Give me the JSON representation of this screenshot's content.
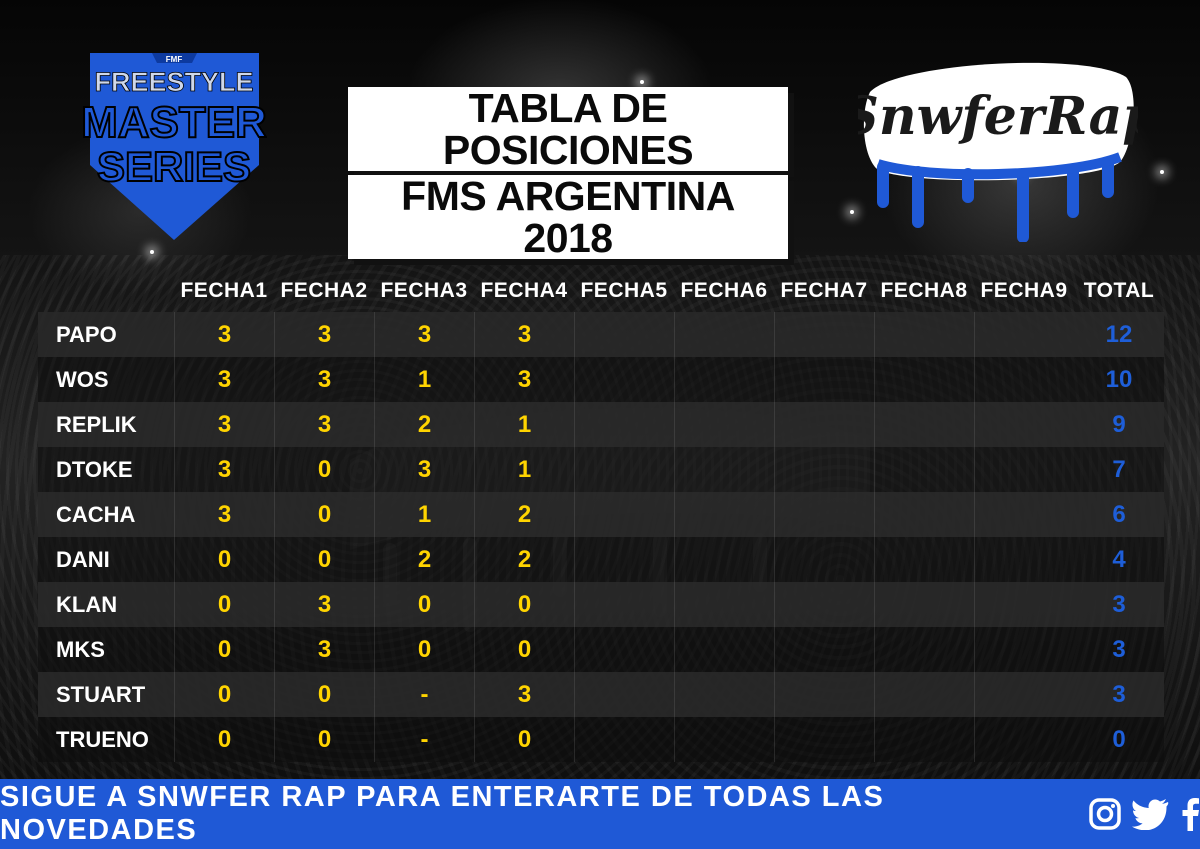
{
  "title": {
    "line1": "TABLA DE POSICIONES",
    "line2": "FMS ARGENTINA 2018"
  },
  "logos": {
    "left": {
      "small": "FMF",
      "line1": "FREESTYLE",
      "line2": "MASTER",
      "line3": "SERIES"
    },
    "right": {
      "text": "SnwferRap"
    }
  },
  "table": {
    "columns": [
      "FECHA1",
      "FECHA2",
      "FECHA3",
      "FECHA4",
      "FECHA5",
      "FECHA6",
      "FECHA7",
      "FECHA8",
      "FECHA9",
      "TOTAL"
    ],
    "rows": [
      {
        "name": "PAPO",
        "scores": [
          "3",
          "3",
          "3",
          "3",
          "",
          "",
          "",
          "",
          ""
        ],
        "total": "12"
      },
      {
        "name": "WOS",
        "scores": [
          "3",
          "3",
          "1",
          "3",
          "",
          "",
          "",
          "",
          ""
        ],
        "total": "10"
      },
      {
        "name": "REPLIK",
        "scores": [
          "3",
          "3",
          "2",
          "1",
          "",
          "",
          "",
          "",
          ""
        ],
        "total": "9"
      },
      {
        "name": "DTOKE",
        "scores": [
          "3",
          "0",
          "3",
          "1",
          "",
          "",
          "",
          "",
          ""
        ],
        "total": "7"
      },
      {
        "name": "CACHA",
        "scores": [
          "3",
          "0",
          "1",
          "2",
          "",
          "",
          "",
          "",
          ""
        ],
        "total": "6"
      },
      {
        "name": "DANI",
        "scores": [
          "0",
          "0",
          "2",
          "2",
          "",
          "",
          "",
          "",
          ""
        ],
        "total": "4"
      },
      {
        "name": "KLAN",
        "scores": [
          "0",
          "3",
          "0",
          "0",
          "",
          "",
          "",
          "",
          ""
        ],
        "total": "3"
      },
      {
        "name": "MKS",
        "scores": [
          "0",
          "3",
          "0",
          "0",
          "",
          "",
          "",
          "",
          ""
        ],
        "total": "3"
      },
      {
        "name": "STUART",
        "scores": [
          "0",
          "0",
          "-",
          "3",
          "",
          "",
          "",
          "",
          ""
        ],
        "total": "3"
      },
      {
        "name": "TRUENO",
        "scores": [
          "0",
          "0",
          "-",
          "0",
          "",
          "",
          "",
          "",
          ""
        ],
        "total": "0"
      }
    ]
  },
  "footer": {
    "text": "SIGUE A SNWFER RAP PARA ENTERARTE DE TODAS LAS NOVEDADES",
    "icons": [
      "instagram-icon",
      "twitter-icon",
      "facebook-icon"
    ]
  },
  "colors": {
    "score": "#ffd400",
    "total": "#1e5ed8",
    "footer_bg": "#1f59d6",
    "brand_blue": "#1f59d6"
  }
}
